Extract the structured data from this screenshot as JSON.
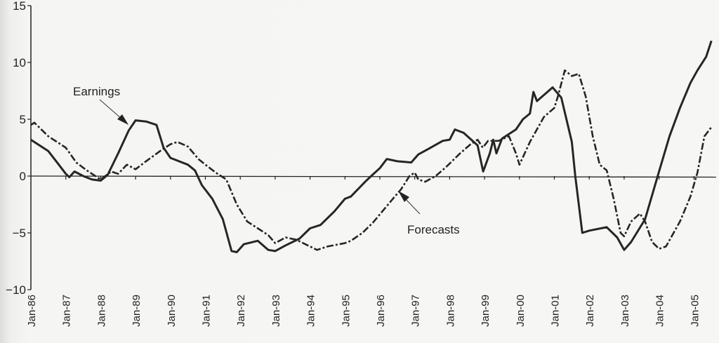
{
  "chart_data": {
    "type": "line",
    "title": "",
    "xlabel": "",
    "ylabel": "",
    "ylim": [
      -10,
      15
    ],
    "xlim": [
      1986.0,
      2005.6
    ],
    "yticks": [
      15,
      10,
      5,
      0,
      -5,
      -10
    ],
    "ytick_labels": [
      "15",
      "10",
      "5",
      "0",
      "-5",
      "-10"
    ],
    "xtick_labels": [
      "Jan-86",
      "Jan-87",
      "Jan-88",
      "Jan-89",
      "Jan-90",
      "Jan-91",
      "Jan-92",
      "Jan-93",
      "Jan-94",
      "Jan-95",
      "Jan-96",
      "Jan-97",
      "Jan-98",
      "Jan-99",
      "Jan-00",
      "Jan-01",
      "Jan-02",
      "Jan-03",
      "Jan-04",
      "Jan-05"
    ],
    "grid": false,
    "legend": "none (inline annotations)",
    "annotations": [
      {
        "text": "Earnings",
        "points_to": "Earnings",
        "at_x": 1988.8
      },
      {
        "text": "Forecasts",
        "points_to": "Forecasts",
        "at_x": 1996.6
      }
    ],
    "series": [
      {
        "name": "Earnings",
        "style": "solid",
        "x": [
          1986.0,
          1986.5,
          1986.8,
          1987.0,
          1987.1,
          1987.25,
          1987.5,
          1987.75,
          1988.0,
          1988.2,
          1988.5,
          1988.8,
          1989.0,
          1989.3,
          1989.6,
          1989.8,
          1990.0,
          1990.5,
          1990.7,
          1990.9,
          1991.2,
          1991.5,
          1991.75,
          1991.9,
          1992.1,
          1992.5,
          1992.8,
          1993.0,
          1993.3,
          1993.7,
          1994.0,
          1994.3,
          1994.7,
          1995.0,
          1995.17,
          1995.58,
          1995.75,
          1996.0,
          1996.2,
          1996.5,
          1996.9,
          1997.1,
          1997.4,
          1997.8,
          1998.0,
          1998.15,
          1998.4,
          1998.8,
          1998.96,
          1999.15,
          1999.25,
          1999.34,
          1999.5,
          1999.9,
          2000.1,
          2000.3,
          2000.4,
          2000.5,
          2000.8,
          2000.95,
          2001.2,
          2001.5,
          2001.6,
          2001.8,
          2002.0,
          2002.5,
          2002.8,
          2003.0,
          2003.2,
          2003.6,
          2004.0,
          2004.3,
          2004.6,
          2004.9,
          2005.1,
          2005.35,
          2005.5
        ],
        "values": [
          3.2,
          2.2,
          1.0,
          0.2,
          -0.1,
          0.4,
          0.0,
          -0.3,
          -0.4,
          0.1,
          2.0,
          4.0,
          4.9,
          4.8,
          4.5,
          2.5,
          1.6,
          1.0,
          0.5,
          -0.8,
          -2.0,
          -3.8,
          -6.6,
          -6.7,
          -6.0,
          -5.7,
          -6.5,
          -6.6,
          -6.1,
          -5.5,
          -4.6,
          -4.3,
          -3.1,
          -2.0,
          -1.8,
          -0.5,
          0.0,
          0.7,
          1.5,
          1.3,
          1.2,
          1.9,
          2.4,
          3.1,
          3.2,
          4.1,
          3.8,
          2.7,
          0.4,
          2.0,
          3.2,
          2.0,
          3.3,
          4.1,
          5.0,
          5.5,
          7.4,
          6.6,
          7.4,
          7.8,
          6.9,
          3.0,
          0.0,
          -5.0,
          -4.8,
          -4.5,
          -5.4,
          -6.5,
          -5.8,
          -3.8,
          0.4,
          3.5,
          6.0,
          8.2,
          9.3,
          10.5,
          11.9
        ]
      },
      {
        "name": "Forecasts",
        "style": "dashed",
        "x": [
          1986.0,
          1986.1,
          1986.5,
          1987.0,
          1987.3,
          1987.6,
          1988.0,
          1988.3,
          1988.5,
          1988.75,
          1989.0,
          1989.3,
          1989.7,
          1990.0,
          1990.2,
          1990.5,
          1990.8,
          1991.0,
          1991.3,
          1991.6,
          1991.9,
          1992.2,
          1992.5,
          1992.8,
          1993.0,
          1993.3,
          1993.6,
          1994.0,
          1994.2,
          1994.5,
          1995.0,
          1995.17,
          1995.5,
          1995.8,
          1996.1,
          1996.4,
          1996.6,
          1996.85,
          1997.0,
          1997.1,
          1997.3,
          1997.6,
          1997.9,
          1998.3,
          1998.6,
          1998.8,
          1998.95,
          1999.1,
          1999.4,
          1999.7,
          1999.9,
          2000.0,
          2000.3,
          2000.7,
          2001.0,
          2001.1,
          2001.3,
          2001.5,
          2001.7,
          2001.9,
          2002.1,
          2002.3,
          2002.5,
          2002.7,
          2002.9,
          2003.0,
          2003.2,
          2003.45,
          2003.6,
          2003.8,
          2004.0,
          2004.2,
          2004.6,
          2004.9,
          2005.1,
          2005.3,
          2005.5
        ],
        "values": [
          4.5,
          4.7,
          3.5,
          2.5,
          1.2,
          0.5,
          -0.3,
          0.4,
          0.2,
          1.0,
          0.6,
          1.3,
          2.2,
          2.8,
          3.0,
          2.6,
          1.5,
          1.0,
          0.3,
          -0.3,
          -2.5,
          -4.0,
          -4.6,
          -5.2,
          -5.9,
          -5.4,
          -5.6,
          -6.2,
          -6.5,
          -6.2,
          -5.9,
          -5.7,
          -5.0,
          -4.1,
          -3.0,
          -1.9,
          -1.2,
          0.0,
          0.3,
          -0.3,
          -0.5,
          0.0,
          0.8,
          2.0,
          2.8,
          3.2,
          2.5,
          3.1,
          3.1,
          3.5,
          2.0,
          1.0,
          3.0,
          5.2,
          6.0,
          7.0,
          9.3,
          8.8,
          9.0,
          7.0,
          3.5,
          1.0,
          0.5,
          -2.0,
          -5.0,
          -5.3,
          -4.0,
          -3.3,
          -4.0,
          -5.8,
          -6.4,
          -6.2,
          -4.0,
          -1.8,
          0.3,
          3.5,
          4.3
        ]
      }
    ]
  }
}
